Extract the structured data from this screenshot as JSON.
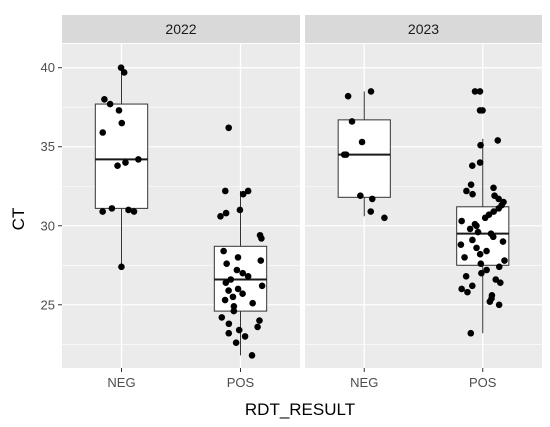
{
  "chart_data": {
    "type": "boxplot",
    "facet_variable": "year",
    "xlabel": "RDT_RESULT",
    "ylabel": "CT",
    "ylim": [
      21,
      41.5
    ],
    "yticks": [
      25,
      30,
      35,
      40
    ],
    "categories": [
      "NEG",
      "POS"
    ],
    "grid": true,
    "facets": [
      {
        "label": "2022",
        "groups": [
          {
            "category": "NEG",
            "box": {
              "lower_whisker": 27.4,
              "q1": 31.1,
              "median": 34.2,
              "q3": 37.7,
              "upper_whisker": 40.0
            },
            "points": [
              40.0,
              39.7,
              38.0,
              37.7,
              37.3,
              36.5,
              35.9,
              34.2,
              34.0,
              33.8,
              31.1,
              30.9,
              31.0,
              30.9,
              27.4
            ]
          },
          {
            "category": "POS",
            "box": {
              "lower_whisker": 21.8,
              "q1": 24.6,
              "median": 26.6,
              "q3": 28.7,
              "upper_whisker": 32.2
            },
            "points": [
              36.2,
              32.2,
              32.2,
              32.0,
              31.0,
              30.8,
              30.6,
              29.4,
              29.2,
              28.4,
              28.0,
              27.8,
              27.6,
              27.2,
              27.0,
              26.8,
              26.6,
              26.4,
              26.2,
              26.0,
              25.9,
              25.7,
              25.5,
              25.3,
              25.1,
              24.9,
              24.6,
              24.2,
              24.0,
              23.8,
              23.6,
              23.4,
              23.2,
              23.0,
              22.6,
              21.8
            ]
          }
        ]
      },
      {
        "label": "2023",
        "groups": [
          {
            "category": "NEG",
            "box": {
              "lower_whisker": 30.6,
              "q1": 31.8,
              "median": 34.5,
              "q3": 36.7,
              "upper_whisker": 38.5
            },
            "points": [
              38.5,
              38.2,
              36.6,
              35.3,
              34.5,
              34.5,
              31.9,
              31.7,
              30.9,
              30.5
            ]
          },
          {
            "category": "POS",
            "box": {
              "lower_whisker": 23.2,
              "q1": 27.5,
              "median": 29.5,
              "q3": 31.2,
              "upper_whisker": 35.5
            },
            "points": [
              38.5,
              38.5,
              37.3,
              37.3,
              35.4,
              35.1,
              34.0,
              33.8,
              32.6,
              32.4,
              32.2,
              32.0,
              31.9,
              31.7,
              31.5,
              31.3,
              31.1,
              30.9,
              30.7,
              30.5,
              30.3,
              30.1,
              30.0,
              29.8,
              29.6,
              29.5,
              29.3,
              29.1,
              29.0,
              28.8,
              28.6,
              28.4,
              28.2,
              28.0,
              27.8,
              27.6,
              27.4,
              27.2,
              27.0,
              26.8,
              26.6,
              26.4,
              26.2,
              26.0,
              25.8,
              25.6,
              25.4,
              25.2,
              25.0,
              23.2
            ]
          }
        ]
      }
    ]
  }
}
